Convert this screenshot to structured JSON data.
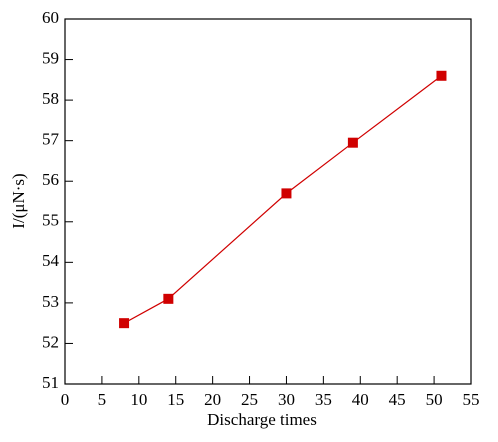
{
  "chart_data": {
    "type": "line",
    "x_label": "Discharge times",
    "y_label": "I/(μN·s)",
    "x": [
      8,
      14,
      30,
      39,
      51
    ],
    "series": [
      {
        "name": "I",
        "color": "#d00000",
        "values": [
          52.5,
          53.1,
          55.7,
          56.95,
          58.6
        ]
      }
    ],
    "xlim": [
      0,
      55
    ],
    "xticks": [
      0,
      5,
      10,
      15,
      20,
      25,
      30,
      35,
      40,
      45,
      50,
      55
    ],
    "ylim": [
      51,
      60
    ],
    "yticks": [
      51,
      52,
      53,
      54,
      55,
      56,
      57,
      58,
      59,
      60
    ]
  }
}
